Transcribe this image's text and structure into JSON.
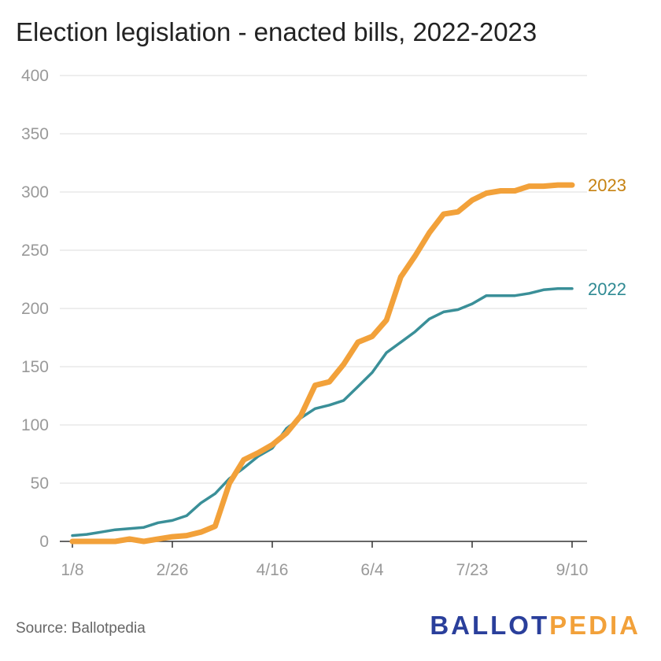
{
  "title": "Election legislation - enacted bills, 2022-2023",
  "source": "Source: Ballotpedia",
  "logo": {
    "part1": "BALLOT",
    "part2": "PEDIA",
    "color1": "#2a3f9b",
    "color2": "#f2a13a"
  },
  "chart_data": {
    "type": "line",
    "title": "Election legislation - enacted bills, 2022-2023",
    "xlabel": "",
    "ylabel": "",
    "ylim": [
      0,
      400
    ],
    "yticks": [
      0,
      50,
      100,
      150,
      200,
      250,
      300,
      350,
      400
    ],
    "xticks": [
      "1/8",
      "2/26",
      "4/16",
      "6/4",
      "7/23",
      "9/10"
    ],
    "grid": true,
    "x": [
      "1/8",
      "1/15",
      "1/22",
      "1/29",
      "2/5",
      "2/12",
      "2/19",
      "2/26",
      "3/5",
      "3/12",
      "3/19",
      "3/26",
      "4/2",
      "4/9",
      "4/16",
      "4/23",
      "4/30",
      "5/7",
      "5/14",
      "5/21",
      "5/28",
      "6/4",
      "6/11",
      "6/18",
      "6/25",
      "7/2",
      "7/9",
      "7/16",
      "7/23",
      "7/30",
      "8/6",
      "8/13",
      "8/20",
      "8/27",
      "9/3",
      "9/10"
    ],
    "series": [
      {
        "name": "2023",
        "color": "#f2a13a",
        "values": [
          0,
          0,
          0,
          0,
          2,
          0,
          2,
          4,
          5,
          8,
          13,
          50,
          70,
          76,
          83,
          93,
          108,
          134,
          137,
          152,
          171,
          176,
          190,
          227,
          245,
          265,
          281,
          283,
          293,
          299,
          301,
          301,
          305,
          305,
          306,
          306
        ]
      },
      {
        "name": "2022",
        "color": "#3a8f98",
        "values": [
          5,
          6,
          8,
          10,
          11,
          12,
          16,
          18,
          22,
          33,
          41,
          54,
          63,
          73,
          80,
          97,
          106,
          114,
          117,
          121,
          133,
          145,
          162,
          171,
          180,
          191,
          197,
          199,
          204,
          211,
          211,
          211,
          213,
          216,
          217,
          217
        ]
      }
    ]
  }
}
